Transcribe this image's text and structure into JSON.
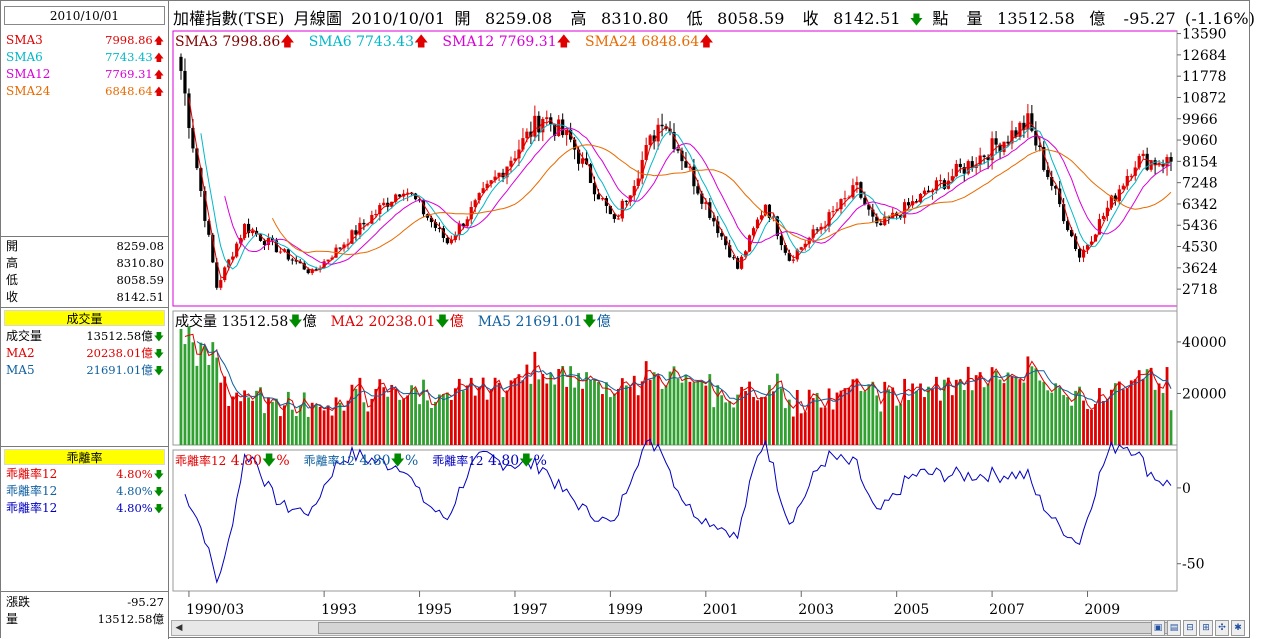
{
  "header": {
    "date": "2010/10/01",
    "title": "加權指數(TSE)",
    "period": "月線圖",
    "open_label": "開",
    "open": "8259.08",
    "high_label": "高",
    "high": "8310.80",
    "low_label": "低",
    "low": "8058.59",
    "close_label": "收",
    "close": "8142.51",
    "unit": "點",
    "vol_label": "量",
    "volume": "13512.58",
    "vol_unit": "億",
    "change": "-95.27",
    "change_pct": "(-1.16%)"
  },
  "left": {
    "sma": [
      {
        "name": "SMA3",
        "value": "7998.86",
        "color": "#e00000",
        "dir": "up"
      },
      {
        "name": "SMA6",
        "value": "7743.43",
        "color": "#00b8c8",
        "dir": "up"
      },
      {
        "name": "SMA12",
        "value": "7769.31",
        "color": "#d800d8",
        "dir": "up"
      },
      {
        "name": "SMA24",
        "value": "6848.64",
        "color": "#e86a00",
        "dir": "up"
      }
    ],
    "ohlc": [
      {
        "k": "開",
        "v": "8259.08"
      },
      {
        "k": "高",
        "v": "8310.80"
      },
      {
        "k": "低",
        "v": "8058.59"
      },
      {
        "k": "收",
        "v": "8142.51"
      }
    ],
    "vol_header": "成交量",
    "vol": [
      {
        "name": "成交量",
        "value": "13512.58億",
        "color": "#000000",
        "dir": "dn"
      },
      {
        "name": "MA2",
        "value": "20238.01億",
        "color": "#e00000",
        "dir": "dn"
      },
      {
        "name": "MA5",
        "value": "21691.01億",
        "color": "#1060a0",
        "dir": "dn"
      }
    ],
    "bias_header": "乖離率",
    "bias": [
      {
        "name": "乖離率12",
        "value": "4.80%",
        "color": "#e00000",
        "dir": "dn"
      },
      {
        "name": "乖離率12",
        "value": "4.80%",
        "color": "#1060a0",
        "dir": "dn"
      },
      {
        "name": "乖離率12",
        "value": "4.80%",
        "color": "#0000c0",
        "dir": "dn"
      }
    ],
    "footer": [
      {
        "k": "漲跌",
        "v": "-95.27"
      },
      {
        "k": "量",
        "v": "13512.58億"
      }
    ]
  },
  "panel_labels": {
    "price": [
      {
        "t": "SMA3 7998.86",
        "c": "#800000"
      },
      {
        "t": "SMA6 7743.43",
        "c": "#00b8c8"
      },
      {
        "t": "SMA12 7769.31",
        "c": "#d800d8"
      },
      {
        "t": "SMA24 6848.64",
        "c": "#e86a00"
      }
    ],
    "vol": [
      {
        "t": "成交量 13512.58",
        "u": "億",
        "c": "#000000"
      },
      {
        "t": "MA2 20238.01",
        "u": "億",
        "c": "#e00000"
      },
      {
        "t": "MA5 21691.01",
        "u": "億",
        "c": "#1060a0"
      }
    ],
    "bias": [
      {
        "t": "乖離率12",
        "v": "4.80",
        "u": "%",
        "c": "#e00000"
      },
      {
        "t": "乖離率12",
        "v": "4.80",
        "u": "%",
        "c": "#1060a0"
      },
      {
        "t": "乖離率12",
        "v": "4.80",
        "u": "%",
        "c": "#0000c0"
      }
    ]
  },
  "chart_data": [
    {
      "type": "candlestick",
      "title": "加權指數(TSE) 月線圖",
      "ylim": [
        2000,
        13700
      ],
      "yticks": [
        13590,
        12684,
        11778,
        10872,
        9966,
        9060,
        8154,
        7248,
        6342,
        5436,
        4530,
        3624,
        2718
      ],
      "x_range": [
        "1990/01",
        "2010/10"
      ],
      "xticks": [
        "1990/03",
        "1993",
        "1995",
        "1997",
        "1999",
        "2001",
        "2003",
        "2005",
        "2007",
        "2009"
      ],
      "key_points": [
        {
          "x": "1990/01",
          "y": 12000
        },
        {
          "x": "1990/10",
          "y": 2800
        },
        {
          "x": "1991/05",
          "y": 5400
        },
        {
          "x": "1992/10",
          "y": 3400
        },
        {
          "x": "1994/09",
          "y": 7100
        },
        {
          "x": "1995/08",
          "y": 4700
        },
        {
          "x": "1997/08",
          "y": 10100
        },
        {
          "x": "1998/03",
          "y": 9000
        },
        {
          "x": "1999/02",
          "y": 5500
        },
        {
          "x": "2000/02",
          "y": 10100
        },
        {
          "x": "2001/09",
          "y": 3600
        },
        {
          "x": "2002/04",
          "y": 6400
        },
        {
          "x": "2002/10",
          "y": 4000
        },
        {
          "x": "2004/03",
          "y": 7000
        },
        {
          "x": "2004/08",
          "y": 5300
        },
        {
          "x": "2007/10",
          "y": 9800
        },
        {
          "x": "2008/11",
          "y": 4100
        },
        {
          "x": "2010/01",
          "y": 8200
        },
        {
          "x": "2010/10",
          "y": 8142
        }
      ]
    },
    {
      "type": "bar",
      "title": "成交量",
      "unit": "億",
      "ylim": [
        0,
        52000
      ],
      "yticks": [
        40000,
        20000
      ]
    },
    {
      "type": "line",
      "title": "乖離率",
      "ylim": [
        -68,
        25
      ],
      "yticks": [
        0,
        -50
      ]
    }
  ]
}
